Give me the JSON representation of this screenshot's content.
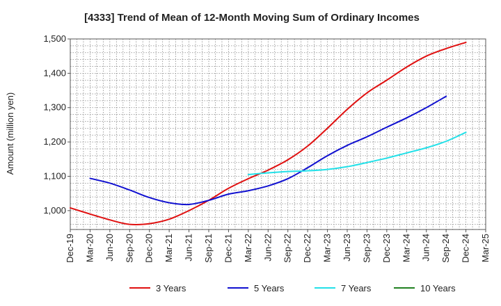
{
  "chart_data": {
    "type": "line",
    "title": "[4333]  Trend of Mean of 12-Month Moving Sum of Ordinary Incomes",
    "xlabel": "",
    "ylabel": "Amount (million yen)",
    "ylim": [
      945,
      1500
    ],
    "yticks": [
      1000,
      1100,
      1200,
      1300,
      1400,
      1500
    ],
    "ytick_labels": [
      "1,000",
      "1,100",
      "1,200",
      "1,300",
      "1,400",
      "1,500"
    ],
    "grid": true,
    "legend_position": "bottom",
    "x_categories": [
      "Dec-19",
      "Mar-20",
      "Jun-20",
      "Sep-20",
      "Dec-20",
      "Mar-21",
      "Jun-21",
      "Sep-21",
      "Dec-21",
      "Mar-22",
      "Jun-22",
      "Sep-22",
      "Dec-22",
      "Mar-23",
      "Jun-23",
      "Sep-23",
      "Dec-23",
      "Mar-24",
      "Jun-24",
      "Sep-24",
      "Dec-24",
      "Mar-25"
    ],
    "series": [
      {
        "name": "3 Years",
        "color": "#e01010",
        "start_index": 0,
        "values": [
          1008,
          990,
          973,
          960,
          962,
          975,
          1000,
          1030,
          1065,
          1093,
          1118,
          1148,
          1188,
          1240,
          1295,
          1343,
          1380,
          1418,
          1450,
          1472,
          1490
        ]
      },
      {
        "name": "5 Years",
        "color": "#1010d0",
        "start_index": 1,
        "values": [
          1094,
          1080,
          1060,
          1038,
          1023,
          1018,
          1030,
          1048,
          1058,
          1072,
          1093,
          1125,
          1160,
          1190,
          1215,
          1243,
          1270,
          1300,
          1333
        ]
      },
      {
        "name": "7 Years",
        "color": "#22e0e8",
        "start_index": 9,
        "values": [
          1105,
          1110,
          1114,
          1116,
          1120,
          1128,
          1140,
          1153,
          1168,
          1183,
          1202,
          1228
        ]
      },
      {
        "name": "10 Years",
        "color": "#208020",
        "start_index": 0,
        "values": []
      }
    ]
  }
}
